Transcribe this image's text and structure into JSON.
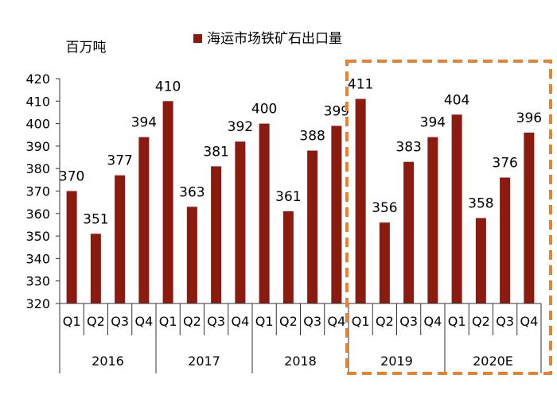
{
  "chart_data": {
    "type": "bar",
    "unit_label": "百万吨",
    "legend": "海运市场铁矿石出口量",
    "legend_position": "top",
    "years": [
      "2016",
      "2017",
      "2018",
      "2019",
      "2020E"
    ],
    "categories": [
      "Q1",
      "Q2",
      "Q3",
      "Q4",
      "Q1",
      "Q2",
      "Q3",
      "Q4",
      "Q1",
      "Q2",
      "Q3",
      "Q4",
      "Q1",
      "Q2",
      "Q3",
      "Q4",
      "Q1",
      "Q2",
      "Q3",
      "Q4"
    ],
    "series": [
      {
        "name": "海运市场铁矿石出口量",
        "values": [
          370,
          351,
          377,
          394,
          410,
          363,
          381,
          392,
          400,
          361,
          388,
          399,
          411,
          356,
          383,
          394,
          404,
          358,
          376,
          396
        ]
      }
    ],
    "ylim": [
      320,
      420
    ],
    "yticks": [
      320,
      330,
      340,
      350,
      360,
      370,
      380,
      390,
      400,
      410,
      420
    ],
    "highlight": {
      "years": [
        "2019",
        "2020E"
      ],
      "style": "dashed-box"
    },
    "grid": false,
    "colors": {
      "bar": "#8B1A0F",
      "axis": "#333333",
      "highlight": "#E8822E",
      "text": "#000000"
    }
  }
}
